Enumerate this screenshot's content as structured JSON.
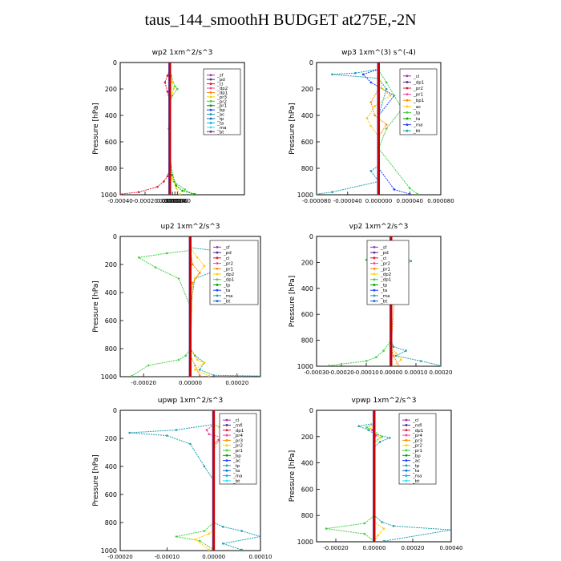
{
  "figure_title": "taus_144_smoothH  BUDGET at275E,-2N",
  "colors": {
    "sf": "#9b30b0",
    "pd": "#5a2a8a",
    "cl": "#e0192f",
    "mfl": "#7a1f8f",
    "dp": "#ff3ea5",
    "pr": "#ffcf00",
    "prb": "#ff8a00",
    "pr1": "#3fd13f",
    "bp": "#00a000",
    "ac": "#1f3fff",
    "tp": "#1f9fb0",
    "ta": "#1565c0",
    "ma": "#00b8d8",
    "bt": "#33ddff",
    "center": "#cc0000"
  },
  "chart_data": [
    {
      "type": "line",
      "title": "wp2   1xm^2/s^3",
      "ylabel": "Pressure [hPa]",
      "ylim": [
        1000,
        0
      ],
      "xlim": [
        -0.0004,
        0.0006
      ],
      "yticks": [
        "0",
        "200",
        "400",
        "600",
        "800",
        "1000"
      ],
      "xticks": [
        "-0.00040",
        "-0.00020",
        "0.000000",
        "0.000020",
        "0.000040",
        "0.000060"
      ],
      "legend": [
        "_sf",
        "_pd",
        "_cl",
        "_dp2",
        "_dp1",
        "_pr3",
        "_pr2",
        "_pr1",
        "_bp",
        "_ac",
        "_tp",
        "_ta",
        "_ma",
        "_bt"
      ],
      "series": [
        {
          "name": "_pr1",
          "color": "pr1",
          "x": [
            0,
            1e-05,
            4e-05,
            6e-05,
            2e-05,
            0,
            -1e-05,
            0,
            1e-05,
            3e-05,
            0.00012,
            0.00018
          ],
          "y": [
            50,
            100,
            180,
            200,
            250,
            300,
            500,
            800,
            850,
            900,
            960,
            995
          ]
        },
        {
          "name": "_cl",
          "color": "cl",
          "x": [
            0,
            -2e-05,
            -4e-05,
            -2e-05,
            0,
            0,
            0,
            -2e-05,
            -5e-05,
            -0.0001,
            -0.00025,
            -0.0004
          ],
          "y": [
            50,
            100,
            150,
            220,
            300,
            500,
            800,
            860,
            900,
            940,
            980,
            995
          ]
        },
        {
          "name": "_pr2",
          "color": "pr",
          "x": [
            0,
            2e-05,
            3e-05,
            0,
            0,
            2e-05,
            5e-05,
            8e-05
          ],
          "y": [
            80,
            150,
            200,
            300,
            800,
            880,
            950,
            995
          ]
        },
        {
          "name": "_bp",
          "color": "bp",
          "x": [
            0,
            2e-05,
            5e-05,
            0.0001,
            0.0002
          ],
          "y": [
            700,
            850,
            930,
            970,
            995
          ]
        }
      ]
    },
    {
      "type": "line",
      "title": "wp3   1xm^(3) s^(-4)",
      "ylabel": "Pressure [hPa]",
      "ylim": [
        1000,
        0
      ],
      "xlim": [
        -8e-05,
        8e-05
      ],
      "yticks": [
        "0",
        "200",
        "400",
        "600",
        "800",
        "1000"
      ],
      "xticks": [
        "-0.000080",
        "-0.000040",
        "0.000000",
        "0.000040",
        "0.000080"
      ],
      "legend": [
        "_cl",
        "_dp1",
        "_pr2",
        "_pr1",
        "_bp1",
        "_ac",
        "_tp",
        "_ta",
        "_ma",
        "_bt"
      ],
      "series": [
        {
          "name": "_tp",
          "color": "tp",
          "x": [
            0,
            -3e-05,
            -6e-05,
            0,
            1e-05,
            0,
            0,
            -1e-05,
            0,
            -6e-05,
            -8e-05
          ],
          "y": [
            50,
            80,
            90,
            120,
            200,
            400,
            780,
            820,
            900,
            980,
            995
          ]
        },
        {
          "name": "_ac",
          "color": "ac",
          "x": [
            0,
            -2e-05,
            -1e-05,
            2e-05,
            0,
            0,
            2e-05,
            4e-05
          ],
          "y": [
            50,
            90,
            150,
            250,
            400,
            800,
            960,
            995
          ]
        },
        {
          "name": "_pr1",
          "color": "pr1",
          "x": [
            0,
            1e-05,
            2e-05,
            3e-05,
            1e-05,
            0,
            4e-05,
            5e-05
          ],
          "y": [
            60,
            150,
            250,
            350,
            500,
            650,
            950,
            995
          ]
        },
        {
          "name": "_pr2",
          "color": "pr",
          "x": [
            0,
            5e-06,
            1.5e-05,
            -5e-06,
            -1.5e-05,
            -1e-05,
            0
          ],
          "y": [
            100,
            200,
            250,
            330,
            420,
            480,
            560
          ]
        },
        {
          "name": "_dp1",
          "color": "prb",
          "x": [
            0,
            -1e-05,
            -5e-06,
            1e-05,
            0
          ],
          "y": [
            200,
            300,
            400,
            470,
            560
          ]
        }
      ]
    },
    {
      "type": "line",
      "title": "up2   1xm^2/s^3",
      "ylabel": "Pressure [hPa]",
      "ylim": [
        1000,
        0
      ],
      "xlim": [
        -0.0003,
        0.0003
      ],
      "yticks": [
        "0",
        "200",
        "400",
        "600",
        "800",
        "1000"
      ],
      "xticks": [
        "-0.00020",
        "0.00000",
        "0.00020"
      ],
      "legend": [
        "_sf",
        "_pd",
        "_cl",
        "_pr2",
        "_pr1",
        "_dp2",
        "_dp1",
        "_tp",
        "_ta",
        "_ma",
        "_bt"
      ],
      "series": [
        {
          "name": "_pr1",
          "color": "pr1",
          "x": [
            0,
            -0.0001,
            -0.00022,
            -0.00015,
            -5e-05,
            0,
            0,
            -2e-05,
            -5e-05,
            -0.00018,
            -0.00025
          ],
          "y": [
            100,
            120,
            150,
            220,
            300,
            500,
            800,
            850,
            880,
            920,
            995
          ]
        },
        {
          "name": "_tp",
          "color": "tp",
          "x": [
            0,
            0.00015,
            0.00024,
            0.0001,
            2e-05,
            0,
            0,
            2e-05,
            6e-05,
            4e-05,
            0.0001,
            0.0003
          ],
          "y": [
            80,
            110,
            180,
            250,
            300,
            500,
            800,
            850,
            900,
            950,
            990,
            995
          ]
        },
        {
          "name": "_pr2",
          "color": "pr",
          "x": [
            0,
            3e-05,
            6e-05,
            2e-05,
            0,
            0,
            3e-05,
            6e-05,
            2e-05,
            8e-05
          ],
          "y": [
            80,
            150,
            210,
            300,
            400,
            800,
            880,
            900,
            950,
            995
          ]
        },
        {
          "name": "_cl",
          "color": "prb",
          "x": [
            0,
            1e-05,
            4e-05,
            1e-05,
            0,
            2e-05,
            4e-05
          ],
          "y": [
            100,
            200,
            260,
            330,
            850,
            920,
            990
          ]
        }
      ]
    },
    {
      "type": "line",
      "title": "vp2   1xm^2/s^3",
      "ylabel": "Pressure [hPa]",
      "ylim": [
        1000,
        0
      ],
      "xlim": [
        -0.0003,
        0.0002
      ],
      "yticks": [
        "0",
        "200",
        "400",
        "600",
        "800",
        "1000"
      ],
      "xticks": [
        "-0.00030",
        "-0.00020",
        "-0.00010",
        "0.00000",
        "0.00010",
        "0.00020"
      ],
      "legend": [
        "_sf",
        "_pd",
        "_cl",
        "_pr2",
        "_pr1",
        "_dp2",
        "_dp1",
        "_tp",
        "_ta",
        "_ma",
        "_bt"
      ],
      "series": [
        {
          "name": "_pr1",
          "color": "pr1",
          "x": [
            0,
            -5e-05,
            -0.0001,
            -6e-05,
            -2e-05,
            0,
            0,
            -3e-05,
            -6e-05,
            -0.0001,
            -0.00025
          ],
          "y": [
            80,
            110,
            180,
            250,
            320,
            500,
            800,
            880,
            930,
            960,
            995
          ]
        },
        {
          "name": "_tp",
          "color": "tp",
          "x": [
            0,
            3e-05,
            8e-05,
            2e-05,
            0,
            0,
            1e-05,
            6e-05,
            2e-05,
            0.00012,
            0.0002
          ],
          "y": [
            80,
            130,
            190,
            260,
            320,
            800,
            850,
            880,
            920,
            960,
            995
          ]
        },
        {
          "name": "_pr2",
          "color": "pr",
          "x": [
            0,
            2e-05,
            4e-05,
            1e-05,
            0,
            0,
            2e-05,
            4e-05,
            1e-05
          ],
          "y": [
            80,
            150,
            200,
            280,
            350,
            850,
            900,
            950,
            995
          ]
        },
        {
          "name": "_cl",
          "color": "prb",
          "x": [
            0,
            5e-06,
            2e-05,
            0,
            1e-05,
            3e-05
          ],
          "y": [
            100,
            200,
            300,
            850,
            920,
            995
          ]
        }
      ]
    },
    {
      "type": "line",
      "title": "upwp   1xm^2/s^3",
      "ylabel": "Pressure [hPa]",
      "ylim": [
        1000,
        0
      ],
      "xlim": [
        -0.0002,
        0.0001
      ],
      "yticks": [
        "0",
        "200",
        "400",
        "600",
        "800",
        "1000"
      ],
      "xticks": [
        "-0.00020",
        "-0.00010",
        "0.00000",
        "0.00010"
      ],
      "legend": [
        "_cl",
        "_mfl",
        "_dp1",
        "_pr4",
        "_pr3",
        "_pr2",
        "_pr1",
        "_bp",
        "_ac",
        "_tp",
        "_ta",
        "_ma",
        "_bt"
      ],
      "series": [
        {
          "name": "_tp",
          "color": "tp",
          "x": [
            0,
            -8e-05,
            -0.00018,
            -0.0001,
            -5e-05,
            -2e-05,
            0,
            0,
            2e-05,
            6e-05,
            0.0001,
            2e-05,
            6e-05
          ],
          "y": [
            100,
            140,
            160,
            180,
            240,
            400,
            500,
            800,
            830,
            860,
            900,
            950,
            995
          ]
        },
        {
          "name": "_pr1",
          "color": "pr1",
          "x": [
            0,
            2e-05,
            5e-05,
            2e-05,
            0,
            0,
            -2e-05,
            -8e-05,
            -3e-05,
            0
          ],
          "y": [
            100,
            130,
            160,
            200,
            250,
            800,
            860,
            900,
            930,
            995
          ]
        },
        {
          "name": "_pr2",
          "color": "pr",
          "x": [
            0,
            2e-05,
            4e-05,
            1e-05,
            0,
            0,
            -1e-05,
            -4e-05,
            -1e-05
          ],
          "y": [
            100,
            140,
            170,
            220,
            280,
            850,
            880,
            920,
            995
          ]
        },
        {
          "name": "_cl",
          "color": "dp",
          "x": [
            0,
            -1.5e-05,
            -1e-05,
            1.5e-05,
            1e-05,
            0
          ],
          "y": [
            100,
            140,
            170,
            190,
            210,
            240
          ]
        }
      ]
    },
    {
      "type": "line",
      "title": "vpwp   1xm^2/s^3",
      "ylabel": "Pressure [hPa]",
      "ylim": [
        1000,
        0
      ],
      "xlim": [
        -0.0003,
        0.0004
      ],
      "yticks": [
        "0",
        "200",
        "400",
        "600",
        "800",
        "1000"
      ],
      "xticks": [
        "-0.00020",
        "0.00000",
        "0.00020",
        "0.00040"
      ],
      "legend": [
        "_cl",
        "_mfl",
        "_dp1",
        "_pr4",
        "_pr3",
        "_pr2",
        "_pr1",
        "_bp",
        "_ac",
        "_tp",
        "_ta",
        "_ma",
        "_bt"
      ],
      "series": [
        {
          "name": "_tp",
          "color": "tp",
          "x": [
            0,
            -8e-05,
            -3e-05,
            0,
            8e-05,
            3e-05,
            0,
            0,
            4e-05,
            0.0001,
            0.0004,
            5e-05
          ],
          "y": [
            100,
            120,
            150,
            180,
            210,
            240,
            280,
            800,
            850,
            880,
            910,
            995
          ]
        },
        {
          "name": "_pr1",
          "color": "pr1",
          "x": [
            0,
            -4e-05,
            0,
            4e-05,
            0,
            0,
            -5e-05,
            -0.00025,
            -5e-05,
            0
          ],
          "y": [
            100,
            130,
            160,
            200,
            240,
            800,
            860,
            900,
            940,
            995
          ]
        },
        {
          "name": "_pr2",
          "color": "pr",
          "x": [
            0,
            -2e-05,
            0,
            3e-05,
            0,
            0,
            5e-05,
            2e-05,
            0
          ],
          "y": [
            100,
            140,
            170,
            210,
            260,
            850,
            900,
            950,
            995
          ]
        },
        {
          "name": "_cl",
          "color": "dp",
          "x": [
            0,
            -1e-05,
            0,
            1e-05,
            0
          ],
          "y": [
            120,
            150,
            170,
            190,
            220
          ]
        }
      ]
    }
  ]
}
